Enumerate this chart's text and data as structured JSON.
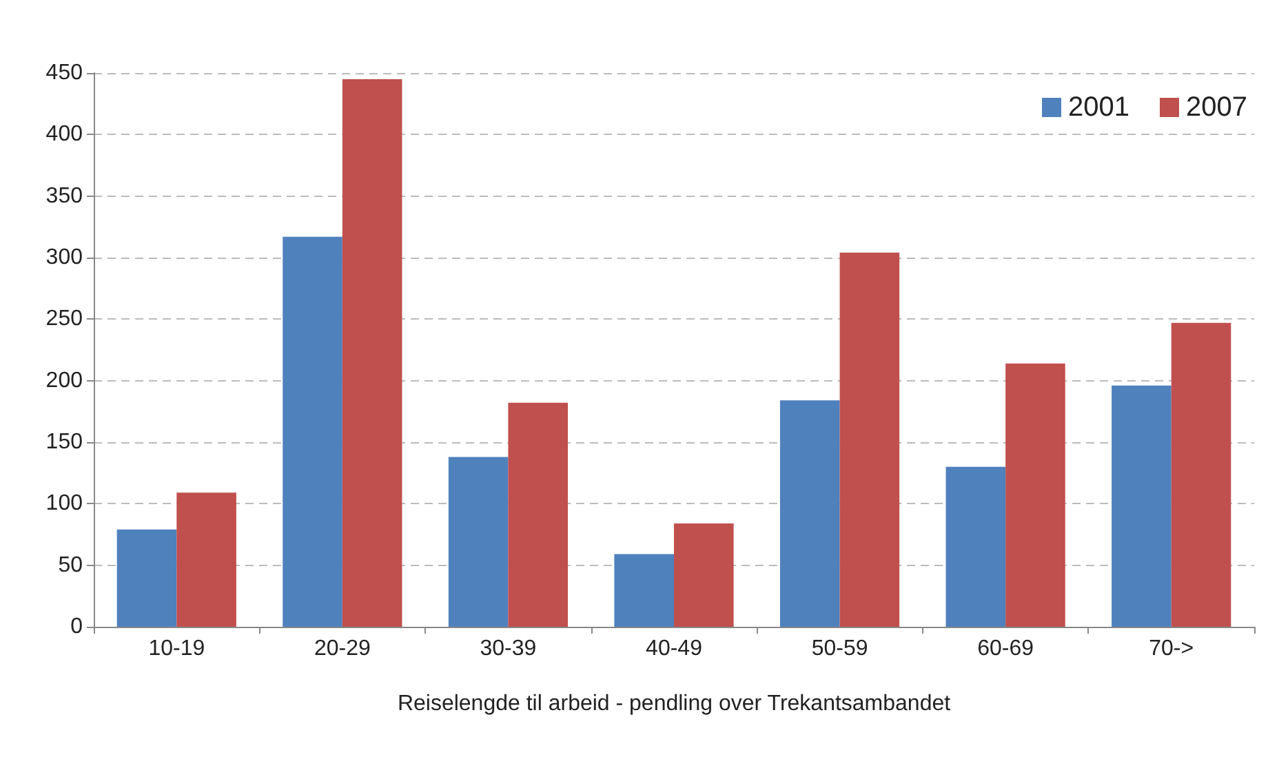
{
  "chart_data": {
    "type": "bar",
    "xlabel": "Reiselengde til arbeid - pendling over Trekantsambandet",
    "categories": [
      "10-19",
      "20-29",
      "30-39",
      "40-49",
      "50-59",
      "60-69",
      "70->"
    ],
    "series": [
      {
        "name": "2001",
        "color": "#4f81bd",
        "values": [
          79,
          317,
          138,
          59,
          184,
          130,
          196
        ]
      },
      {
        "name": "2007",
        "color": "#c0504d",
        "values": [
          109,
          445,
          182,
          84,
          304,
          214,
          247
        ]
      }
    ],
    "ylim": [
      0,
      450
    ],
    "yticks": [
      0,
      50,
      100,
      150,
      200,
      250,
      300,
      350,
      400,
      450
    ],
    "grid": "y",
    "legend": "top right"
  }
}
